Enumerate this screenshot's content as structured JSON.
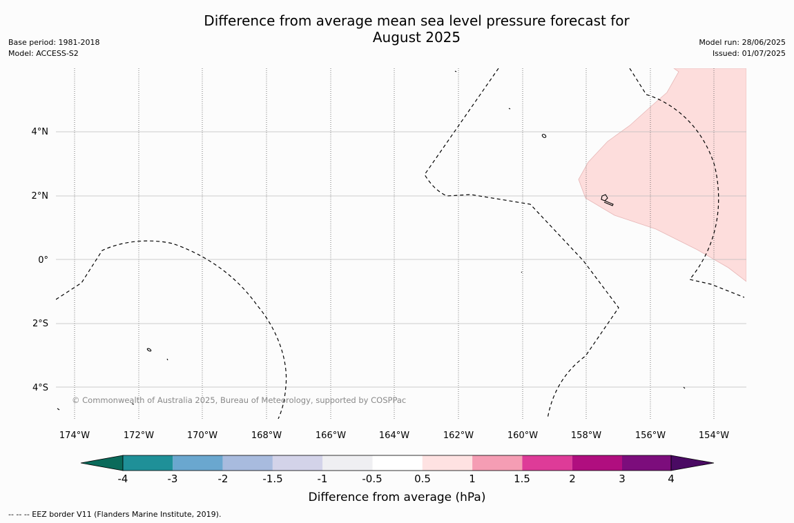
{
  "title_line1": "Difference from average mean sea level pressure forecast for",
  "title_line2": "August 2025",
  "base_period": "Base period: 1981-2018",
  "model": "Model: ACCESS-S2",
  "model_run": "Model run: 28/06/2025",
  "issued": "Issued: 01/07/2025",
  "copyright": "© Commonwealth of Australia 2025, Bureau of Meteorology, supported by COSPPac",
  "footnote": "--  --  -- EEZ border V11 (Flanders Marine Institute, 2019).",
  "map": {
    "lon_labels": [
      "174°W",
      "172°W",
      "170°W",
      "168°W",
      "166°W",
      "164°W",
      "162°W",
      "160°W",
      "158°W",
      "156°W",
      "154°W"
    ],
    "lat_labels": [
      "4°N",
      "2°N",
      "0°",
      "2°S",
      "4°S"
    ],
    "anomaly_region_color": "#fddddc",
    "eez_line_style": "dashed"
  },
  "colorbar": {
    "title": "Difference from average (hPa)",
    "tick_labels": [
      "-4",
      "-3",
      "-2",
      "-1.5",
      "-1",
      "-0.5",
      "0.5",
      "1",
      "1.5",
      "2",
      "3",
      "4"
    ],
    "colors": [
      "#0a6a5a",
      "#1f9098",
      "#6aa7cf",
      "#a8bbde",
      "#d3d3e9",
      "#efeff2",
      "#ffffff",
      "#fee2e2",
      "#f59db4",
      "#de3b98",
      "#b00e7f",
      "#7c0d7c",
      "#4a0a63"
    ]
  }
}
